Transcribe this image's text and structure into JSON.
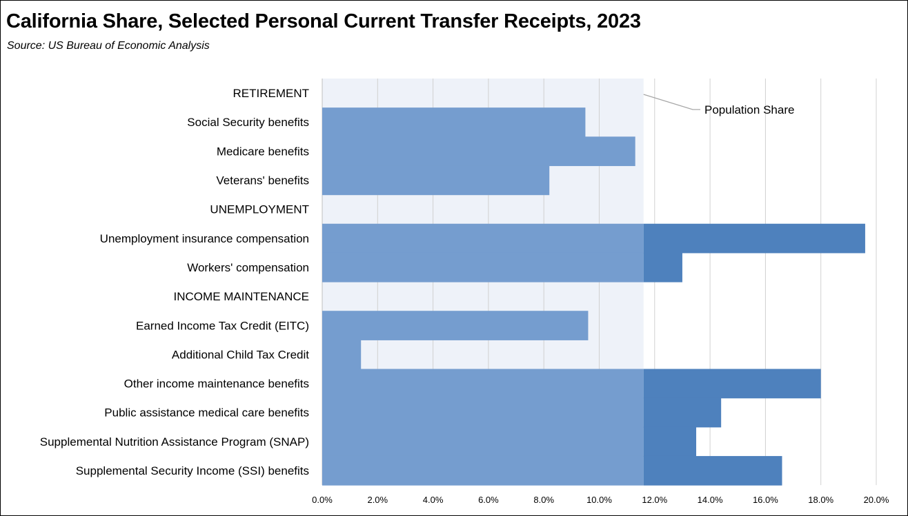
{
  "title": "California Share, Selected Personal Current Transfer Receipts, 2023",
  "subtitle": "Source:  US Bureau of Economic Analysis",
  "chart_data": {
    "type": "bar",
    "orientation": "horizontal",
    "categories": [
      "RETIREMENT",
      "Social Security benefits",
      "Medicare benefits",
      "Veterans' benefits",
      "UNEMPLOYMENT",
      "Unemployment insurance compensation",
      "Workers' compensation",
      "INCOME MAINTENANCE",
      "Earned Income Tax Credit (EITC)",
      "Additional Child Tax Credit",
      "Other income maintenance benefits",
      "Public assistance medical care benefits",
      "Supplemental Nutrition Assistance Program (SNAP)",
      "Supplemental Security Income (SSI) benefits"
    ],
    "values": [
      null,
      9.5,
      11.3,
      8.2,
      null,
      19.6,
      13.0,
      null,
      9.6,
      1.4,
      18.0,
      14.4,
      13.5,
      16.6
    ],
    "reference_value": 11.6,
    "reference_label": "Population Share",
    "xlim": [
      0,
      20
    ],
    "xticks": [
      0,
      2,
      4,
      6,
      8,
      10,
      12,
      14,
      16,
      18,
      20
    ],
    "tick_labels": [
      "0.0%",
      "2.0%",
      "4.0%",
      "6.0%",
      "8.0%",
      "10.0%",
      "12.0%",
      "14.0%",
      "16.0%",
      "18.0%",
      "20.0%"
    ],
    "grid": true,
    "colors": {
      "bar": "#759dcf",
      "bar_above_reference": "#4e81bd",
      "reference_band": "#eef2f9",
      "grid": "#d0d0d0",
      "leader_line": "#a6a6a6"
    }
  }
}
